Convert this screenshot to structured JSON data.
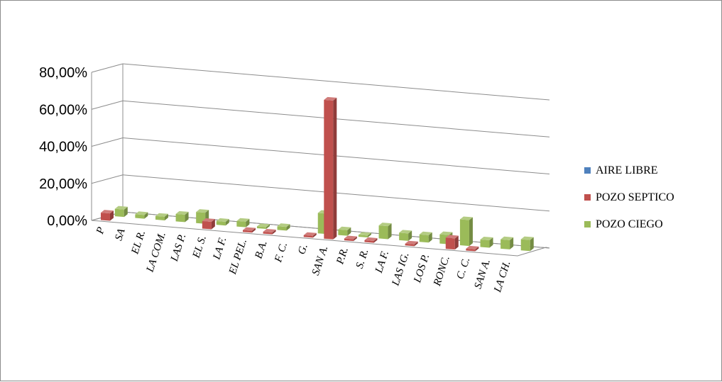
{
  "chart_data": {
    "type": "bar",
    "title": "",
    "xlabel": "",
    "ylabel": "",
    "ylim": [
      0,
      80
    ],
    "y_ticks": [
      "0,00%",
      "20,00%",
      "40,00%",
      "60,00%",
      "80,00%"
    ],
    "categories": [
      "P",
      "SA",
      "EL R.",
      "LA COM.",
      "LAS P.",
      "EL S.",
      "LA F.",
      "EL PEL.",
      "B.A.",
      "F. C.",
      "G.",
      "SAN A.",
      "P.R.",
      "S. R.",
      "LA F.",
      "LAS IG.",
      "LOS P.",
      "RONC.",
      "C. C.",
      "SAN A.",
      "LA CH."
    ],
    "series": [
      {
        "name": "AIRE LIBRE",
        "color": "#4f81bd",
        "values": [
          0,
          0,
          0,
          0,
          0,
          0,
          0,
          0,
          0,
          0,
          0,
          0,
          0,
          0,
          0,
          0,
          0,
          0,
          0,
          0,
          0
        ]
      },
      {
        "name": "POZO SEPTICO",
        "color": "#c0504d",
        "values": [
          4,
          0,
          0,
          0,
          0,
          4,
          0,
          1,
          1,
          0,
          1,
          75,
          1,
          1,
          0,
          1,
          0,
          6,
          1,
          0,
          0
        ]
      },
      {
        "name": "POZO CIEGO",
        "color": "#9bbb59",
        "values": [
          4,
          2,
          2,
          4,
          6,
          2,
          3,
          1,
          2,
          0,
          11,
          3,
          1,
          7,
          4,
          4,
          5,
          14,
          4,
          5,
          6
        ]
      }
    ],
    "grid": true,
    "legend_position": "right"
  }
}
